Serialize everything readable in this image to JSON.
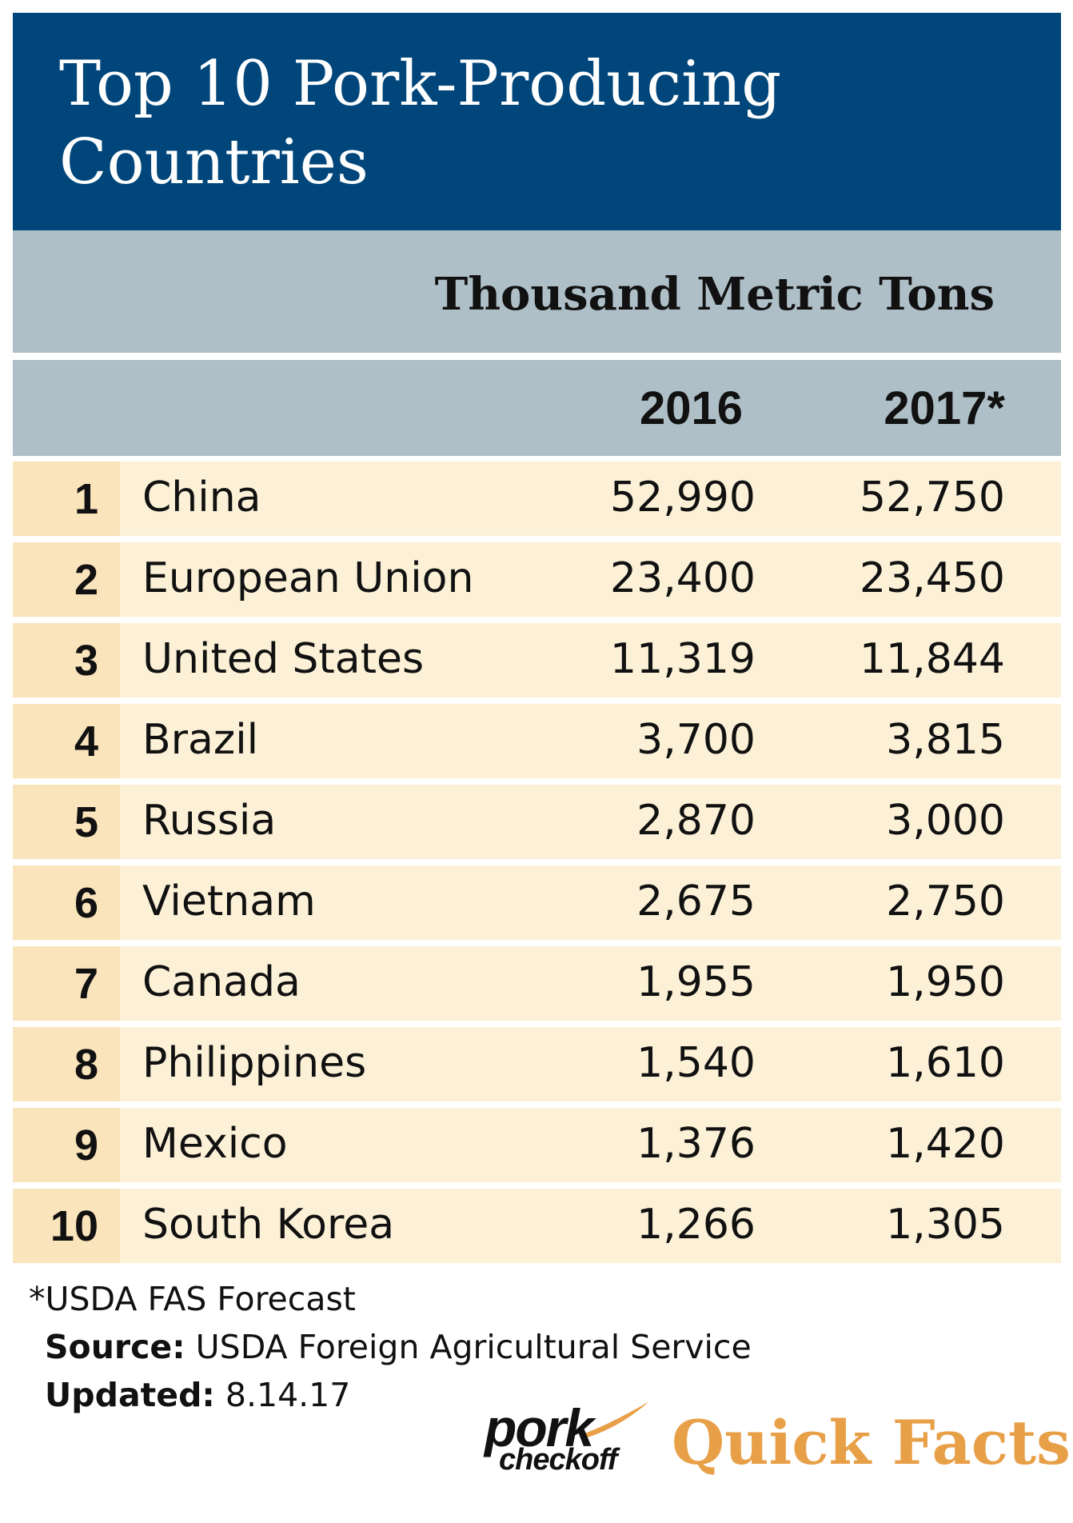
{
  "header": {
    "title_line1": "Top 10 Pork-Producing",
    "title_line2": "Countries"
  },
  "chart_data": {
    "type": "table",
    "title": "Top 10 Pork-Producing Countries",
    "units": "Thousand Metric Tons",
    "columns": [
      "2016",
      "2017*"
    ],
    "rows": [
      {
        "rank": "1",
        "country": "China",
        "v2016": "52,990",
        "v2017": "52,750"
      },
      {
        "rank": "2",
        "country": "European Union",
        "v2016": "23,400",
        "v2017": "23,450"
      },
      {
        "rank": "3",
        "country": "United States",
        "v2016": "11,319",
        "v2017": "11,844"
      },
      {
        "rank": "4",
        "country": "Brazil",
        "v2016": "3,700",
        "v2017": "3,815"
      },
      {
        "rank": "5",
        "country": "Russia",
        "v2016": "2,870",
        "v2017": "3,000"
      },
      {
        "rank": "6",
        "country": "Vietnam",
        "v2016": "2,675",
        "v2017": "2,750"
      },
      {
        "rank": "7",
        "country": "Canada",
        "v2016": "1,955",
        "v2017": "1,950"
      },
      {
        "rank": "8",
        "country": "Philippines",
        "v2016": "1,540",
        "v2017": "1,610"
      },
      {
        "rank": "9",
        "country": "Mexico",
        "v2016": "1,376",
        "v2017": "1,420"
      },
      {
        "rank": "10",
        "country": "South Korea",
        "v2016": "1,266",
        "v2017": "1,305"
      }
    ]
  },
  "footer": {
    "footnote": "*USDA FAS Forecast",
    "source_label": "Source:",
    "source_value": "USDA Foreign Agricultural Service",
    "updated_label": "Updated:",
    "updated_value": "8.14.17"
  },
  "brand": {
    "logo_word1": "pork",
    "logo_word2": "checkoff",
    "tagline": "Quick Facts"
  },
  "colors": {
    "header_blue": "#00467a",
    "band_gray": "#afbfc7",
    "row_cream": "#fcf1d7",
    "rank_tan": "#fae4bb",
    "accent_orange": "#e8a048"
  }
}
